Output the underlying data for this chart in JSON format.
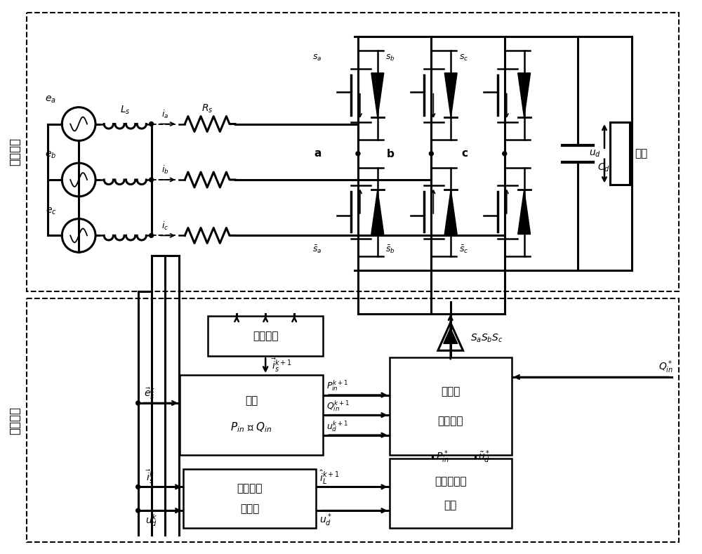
{
  "bg_color": "#ffffff",
  "rectifier_label": "整流系统",
  "control_label": "控制系统",
  "load_label": "负载"
}
